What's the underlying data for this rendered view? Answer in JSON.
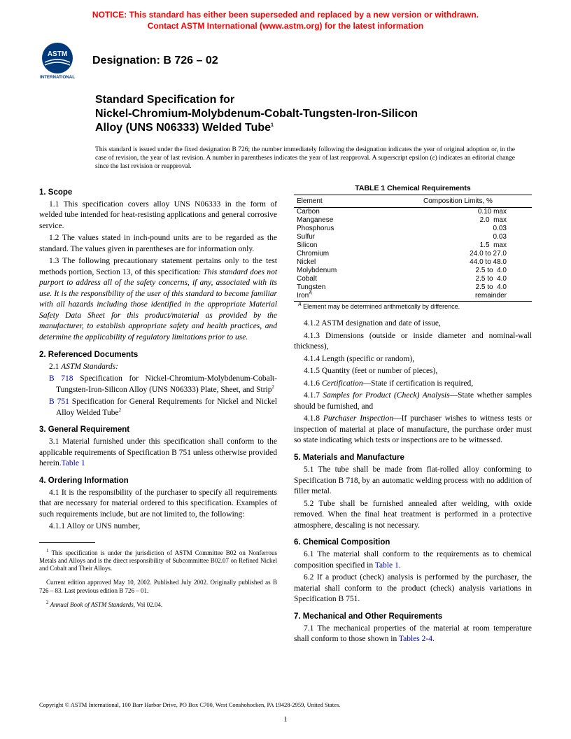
{
  "notice": {
    "line1": "NOTICE: This standard has either been superseded and replaced by a new version or withdrawn.",
    "line2": "Contact ASTM International (www.astm.org) for the latest information"
  },
  "header": {
    "designation_label": "Designation: B 726 – 02",
    "logo_top": "ASTM",
    "logo_bottom": "INTERNATIONAL"
  },
  "title": {
    "line1": "Standard Specification for",
    "line2": "Nickel-Chromium-Molybdenum-Cobalt-Tungsten-Iron-Silicon",
    "line3": "Alloy (UNS N06333) Welded Tube"
  },
  "issuance": "This standard is issued under the fixed designation B 726; the number immediately following the designation indicates the year of original adoption or, in the case of revision, the year of last revision. A number in parentheses indicates the year of last reapproval. A superscript epsilon (ε) indicates an editorial change since the last revision or reapproval.",
  "sections": {
    "s1_head": "1. Scope",
    "s1_1": "1.1 This specification covers alloy UNS N06333 in the form of welded tube intended for heat-resisting applications and general corrosive service.",
    "s1_2": "1.2 The values stated in inch-pound units are to be regarded as the standard. The values given in parentheses are for information only.",
    "s1_3a": "1.3 The following precautionary statement pertains only to the test methods portion, Section 13, of this specification: ",
    "s1_3b": "This standard does not purport to address all of the safety concerns, if any, associated with its use. It is the responsibility of the user of this standard to become familiar with all hazards including those identified in the appropriate Material Safety Data Sheet for this product/material as provided by the manufacturer, to establish appropriate safety and health practices, and determine the applicability of regulatory limitations prior to use.",
    "s2_head": "2. Referenced Documents",
    "s2_1": "2.1 ",
    "s2_1_label": "ASTM Standards:",
    "ref1_link": "B 718",
    "ref1_text": " Specification for Nickel-Chromium-Molybdenum-Cobalt-Tungsten-Iron-Silicon Alloy (UNS N06333) Plate, Sheet, and Strip",
    "ref2_link": "B 751",
    "ref2_text": " Specification for General Requirements for Nickel and Nickel Alloy Welded Tube",
    "s3_head": "3. General Requirement",
    "s3_1": "3.1 Material furnished under this specification shall conform to the applicable requirements of Specification B 751 unless otherwise provided herein.",
    "s3_1_link": "Table 1",
    "s4_head": "4. Ordering Information",
    "s4_1": "4.1 It is the responsibility of the purchaser to specify all requirements that are necessary for material ordered to this specification. Examples of such requirements include, but are not limited to, the following:",
    "s4_1_1": "4.1.1 Alloy or UNS number,",
    "s4_1_2": "4.1.2 ASTM designation and date of issue,",
    "s4_1_3": "4.1.3 Dimensions (outside or inside diameter and nominal-wall thickness),",
    "s4_1_4": "4.1.4 Length (specific or random),",
    "s4_1_5": "4.1.5 Quantity (feet or number of pieces),",
    "s4_1_6a": "4.1.6 ",
    "s4_1_6_label": "Certification",
    "s4_1_6b": "—State if certification is required,",
    "s4_1_7a": "4.1.7 ",
    "s4_1_7_label": "Samples for Product (Check) Analysis",
    "s4_1_7b": "—State whether samples should be furnished, and",
    "s4_1_8a": "4.1.8 ",
    "s4_1_8_label": "Purchaser Inspection",
    "s4_1_8b": "—If purchaser wishes to witness tests or inspection of material at place of manufacture, the purchase order must so state indicating which tests or inspections are to be witnessed.",
    "s5_head": "5. Materials and Manufacture",
    "s5_1": "5.1 The tube shall be made from flat-rolled alloy conforming to Specification B 718, by an automatic welding process with no addition of filler metal.",
    "s5_2": "5.2 Tube shall be furnished annealed after welding, with oxide removed. When the final heat treatment is performed in a protective atmosphere, descaling is not necessary.",
    "s6_head": "6. Chemical Composition",
    "s6_1a": "6.1 The material shall conform to the requirements as to chemical composition specified in ",
    "s6_1_link": "Table 1",
    "s6_1b": ".",
    "s6_2": "6.2 If a product (check) analysis is performed by the purchaser, the material shall conform to the product (check) analysis variations in Specification B 751.",
    "s7_head": "7. Mechanical and Other Requirements",
    "s7_1a": "7.1 The mechanical properties of the material at room temperature shall conform to those shown in ",
    "s7_1_link": "Tables 2-4",
    "s7_1b": "."
  },
  "table1": {
    "title": "TABLE 1  Chemical Requirements",
    "col1": "Element",
    "col2": "Composition Limits, %",
    "rows": [
      {
        "e": "Carbon",
        "v": "0.10 max"
      },
      {
        "e": "Manganese",
        "v": "2.0  max"
      },
      {
        "e": "Phosphorus",
        "v": "0.03"
      },
      {
        "e": "Sulfur",
        "v": "0.03"
      },
      {
        "e": "Silicon",
        "v": "1.5  max"
      },
      {
        "e": "Chromium",
        "v": "24.0 to 27.0"
      },
      {
        "e": "Nickel",
        "v": "44.0 to 48.0"
      },
      {
        "e": "Molybdenum",
        "v": "2.5 to  4.0"
      },
      {
        "e": "Cobalt",
        "v": "2.5 to  4.0"
      },
      {
        "e": "Tungsten",
        "v": "2.5 to  4.0"
      },
      {
        "e": "Iron",
        "v": "remainder",
        "sup": "A"
      }
    ],
    "note_sup": "A",
    "note": " Element may be determined arithmetically by difference."
  },
  "footnotes": {
    "f1": " This specification is under the jurisdiction of ASTM Committee B02 on Nonferrous Metals and Alloys and is the direct responsibility of Subcommittee B02.07 on Refined Nickel and Cobalt and Their Alloys.",
    "f1b": "Current edition approved May 10, 2002. Published July 2002. Originally published as B 726 – 83. Last previous edition B 726 – 01.",
    "f2_label": "Annual Book of ASTM Standards",
    "f2": ", Vol 02.04."
  },
  "copyright": "Copyright © ASTM International, 100 Barr Harbor Drive, PO Box C700, West Conshohocken, PA 19428-2959, United States.",
  "pagenum": "1"
}
